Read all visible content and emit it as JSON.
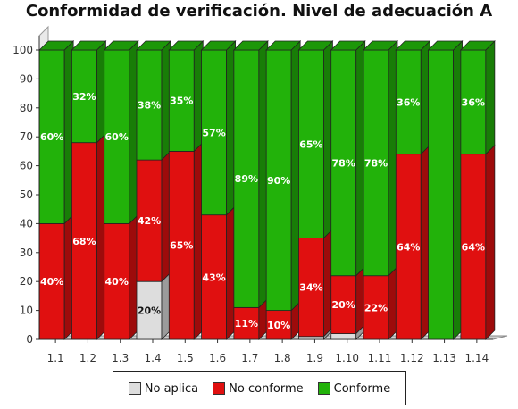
{
  "chart_data": {
    "type": "bar",
    "stacked": true,
    "title": "Conformidad de verificación. Nivel de adecuación A",
    "categories": [
      "1.1",
      "1.2",
      "1.3",
      "1.4",
      "1.5",
      "1.6",
      "1.7",
      "1.8",
      "1.9",
      "1.10",
      "1.11",
      "1.12",
      "1.13",
      "1.14"
    ],
    "series": [
      {
        "name": "No aplica",
        "color": "#dddddd",
        "values": [
          0,
          0,
          0,
          20,
          0,
          0,
          0,
          0,
          1,
          2,
          0,
          0,
          0,
          0
        ],
        "labels": [
          "",
          "",
          "",
          "20%",
          "",
          "",
          "",
          "",
          "",
          "",
          "",
          "",
          "",
          ""
        ]
      },
      {
        "name": "No conforme",
        "color": "#e01010",
        "values": [
          40,
          68,
          40,
          42,
          65,
          43,
          11,
          10,
          34,
          20,
          22,
          64,
          0,
          64
        ],
        "labels": [
          "40%",
          "68%",
          "40%",
          "42%",
          "65%",
          "43%",
          "11%",
          "10%",
          "34%",
          "20%",
          "22%",
          "64%",
          "",
          "64%"
        ]
      },
      {
        "name": "Conforme",
        "color": "#22b20a",
        "values": [
          60,
          32,
          60,
          38,
          35,
          57,
          89,
          90,
          65,
          78,
          78,
          36,
          100,
          36
        ],
        "labels": [
          "60%",
          "32%",
          "60%",
          "38%",
          "35%",
          "57%",
          "89%",
          "90%",
          "65%",
          "78%",
          "78%",
          "36%",
          "",
          "36%"
        ]
      }
    ],
    "ylim": [
      0,
      100
    ],
    "yticks": [
      0,
      10,
      20,
      30,
      40,
      50,
      60,
      70,
      80,
      90,
      100
    ],
    "grid": false,
    "legend_position": "bottom"
  }
}
